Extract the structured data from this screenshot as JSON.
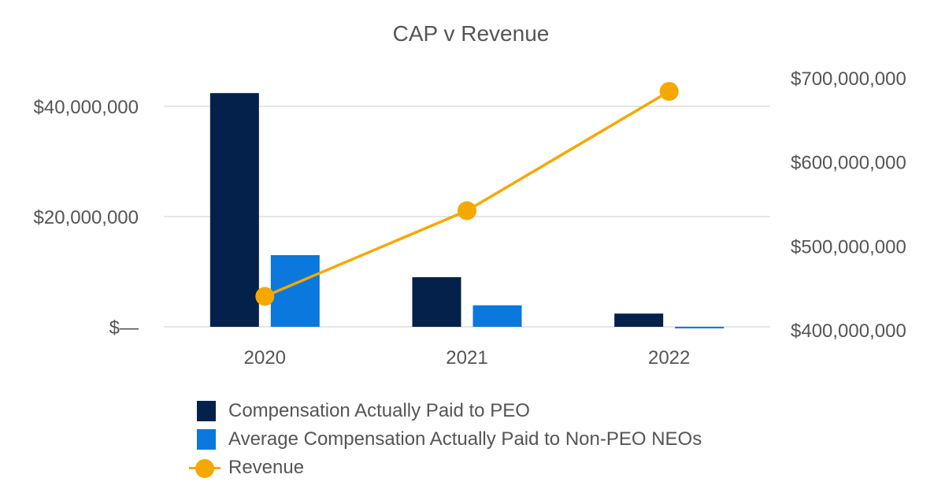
{
  "chart_data": {
    "type": "bar+line",
    "title": "CAP v Revenue",
    "categories": [
      "2020",
      "2021",
      "2022"
    ],
    "series": [
      {
        "name": "Compensation Actually Paid to PEO",
        "type": "bar",
        "axis": "left",
        "color": "#03214a",
        "values": [
          42400000,
          9000000,
          2400000
        ]
      },
      {
        "name": "Average Compensation Actually Paid to Non-PEO NEOs",
        "type": "bar",
        "axis": "left",
        "color": "#0a78dc",
        "values": [
          13000000,
          3900000,
          -200000
        ]
      },
      {
        "name": "Revenue",
        "type": "line",
        "axis": "right",
        "color": "#f5a800",
        "values": [
          440000000,
          542000000,
          684000000
        ]
      }
    ],
    "left_axis": {
      "ylim": [
        0,
        40000000
      ],
      "ticks": [
        0,
        20000000,
        40000000
      ],
      "tick_labels": [
        "$—",
        "$20,000,000",
        "$40,000,000"
      ]
    },
    "right_axis": {
      "ylim": [
        400000000,
        700000000
      ],
      "ticks": [
        400000000,
        500000000,
        600000000,
        700000000
      ],
      "tick_labels": [
        "$400,000,000",
        "$500,000,000",
        "$600,000,000",
        "$700,000,000"
      ]
    },
    "grid": true,
    "legend_position": "bottom"
  }
}
